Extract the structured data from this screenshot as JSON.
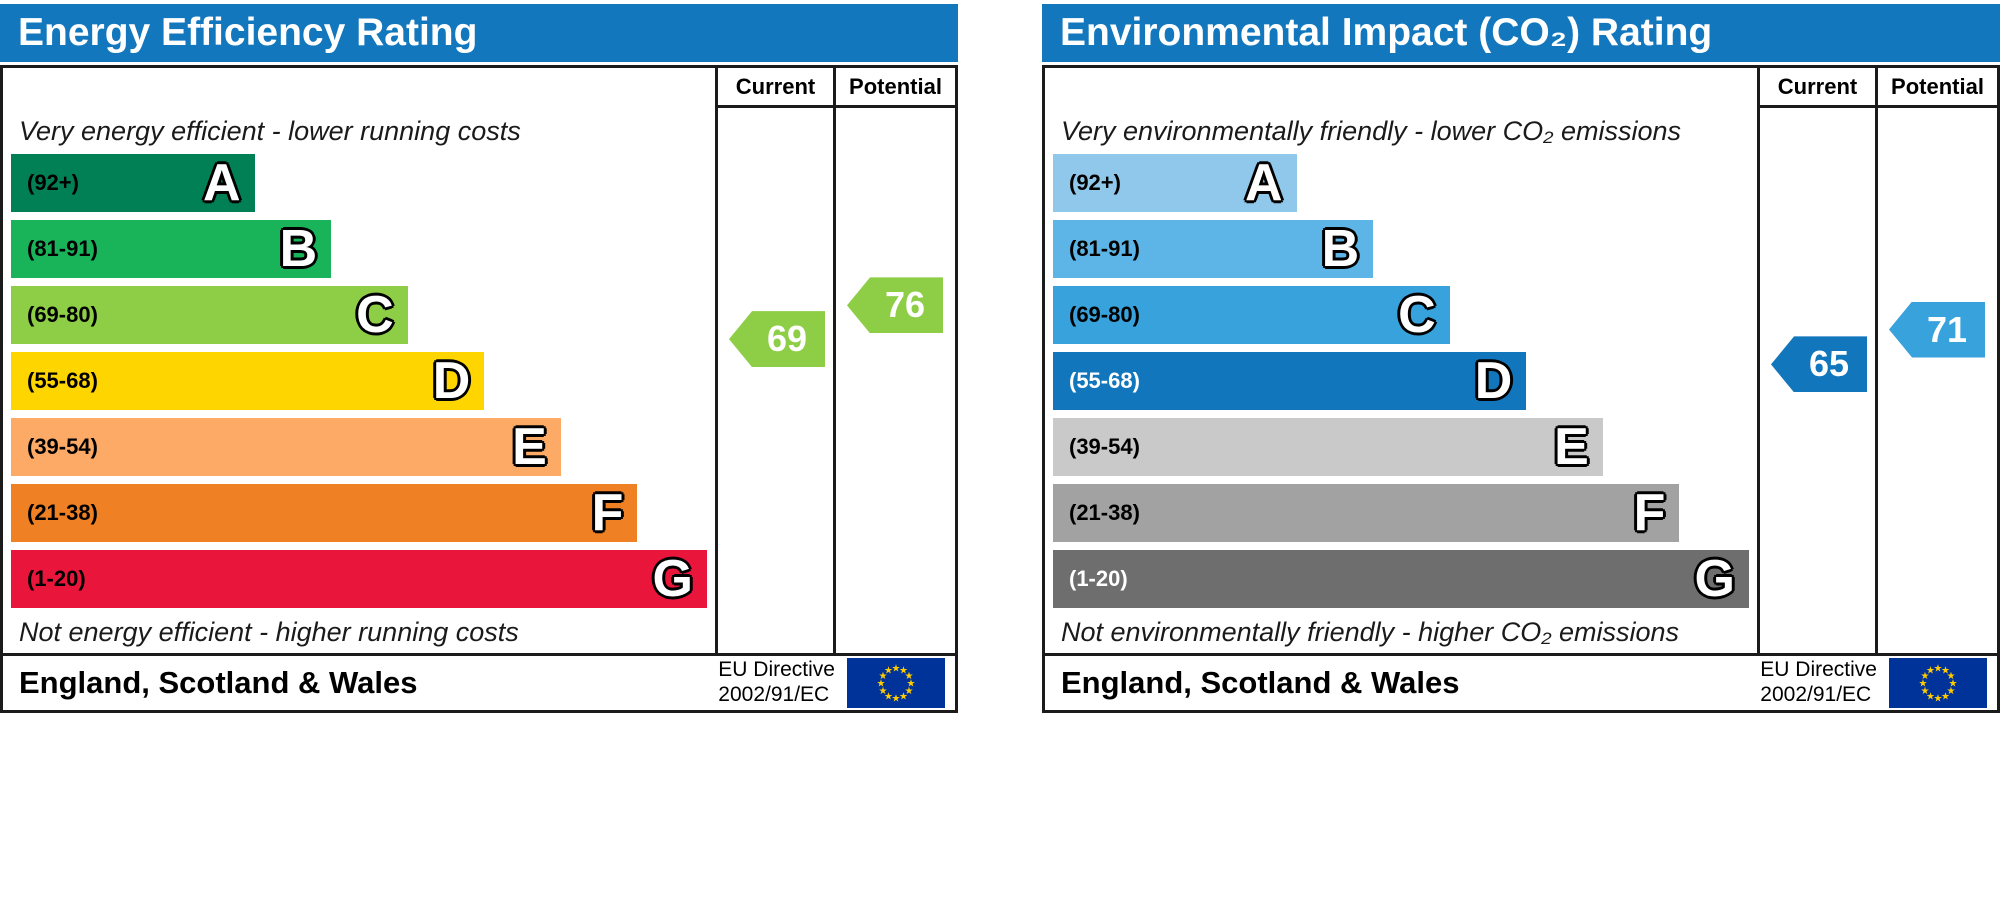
{
  "chart_data": [
    {
      "type": "bar",
      "chart_kind": "epc-rating-scale",
      "title": "Energy Efficiency Rating",
      "header_color": "#1277bd",
      "columns": [
        "Current",
        "Potential"
      ],
      "top_caption": "Very energy efficient - lower running costs",
      "bottom_caption": "Not energy efficient - higher running costs",
      "footer_region": "England, Scotland & Wales",
      "eu_directive": [
        "EU Directive",
        "2002/91/EC"
      ],
      "bands": [
        {
          "letter": "A",
          "label": "(92+)",
          "min": 92,
          "max": 100,
          "color": "#008054",
          "label_color": "#000000",
          "width_pct": 35
        },
        {
          "letter": "B",
          "label": "(81-91)",
          "min": 81,
          "max": 91,
          "color": "#19b459",
          "label_color": "#000000",
          "width_pct": 46
        },
        {
          "letter": "C",
          "label": "(69-80)",
          "min": 69,
          "max": 80,
          "color": "#8dce46",
          "label_color": "#000000",
          "width_pct": 57
        },
        {
          "letter": "D",
          "label": "(55-68)",
          "min": 55,
          "max": 68,
          "color": "#ffd500",
          "label_color": "#000000",
          "width_pct": 68
        },
        {
          "letter": "E",
          "label": "(39-54)",
          "min": 39,
          "max": 54,
          "color": "#fcaa65",
          "label_color": "#000000",
          "width_pct": 79
        },
        {
          "letter": "F",
          "label": "(21-38)",
          "min": 21,
          "max": 38,
          "color": "#ef8023",
          "label_color": "#000000",
          "width_pct": 90
        },
        {
          "letter": "G",
          "label": "(1-20)",
          "min": 1,
          "max": 20,
          "color": "#e9153b",
          "label_color": "#000000",
          "width_pct": 100
        }
      ],
      "current": {
        "value": 69,
        "color": "#8dce46"
      },
      "potential": {
        "value": 76,
        "color": "#8dce46"
      }
    },
    {
      "type": "bar",
      "chart_kind": "epc-rating-scale",
      "title": "Environmental Impact (CO₂) Rating",
      "header_color": "#1277bd",
      "columns": [
        "Current",
        "Potential"
      ],
      "top_caption": "Very environmentally friendly - lower CO₂ emissions",
      "bottom_caption": "Not environmentally friendly - higher CO₂ emissions",
      "footer_region": "England, Scotland & Wales",
      "eu_directive": [
        "EU Directive",
        "2002/91/EC"
      ],
      "bands": [
        {
          "letter": "A",
          "label": "(92+)",
          "min": 92,
          "max": 100,
          "color": "#8fc8ea",
          "label_color": "#000000",
          "width_pct": 35
        },
        {
          "letter": "B",
          "label": "(81-91)",
          "min": 81,
          "max": 91,
          "color": "#5db5e7",
          "label_color": "#000000",
          "width_pct": 46
        },
        {
          "letter": "C",
          "label": "(69-80)",
          "min": 69,
          "max": 80,
          "color": "#37a2dc",
          "label_color": "#000000",
          "width_pct": 57
        },
        {
          "letter": "D",
          "label": "(55-68)",
          "min": 55,
          "max": 68,
          "color": "#1176bc",
          "label_color": "#ffffff",
          "width_pct": 68
        },
        {
          "letter": "E",
          "label": "(39-54)",
          "min": 39,
          "max": 54,
          "color": "#c9c9c9",
          "label_color": "#000000",
          "width_pct": 79
        },
        {
          "letter": "F",
          "label": "(21-38)",
          "min": 21,
          "max": 38,
          "color": "#a2a2a2",
          "label_color": "#000000",
          "width_pct": 90
        },
        {
          "letter": "G",
          "label": "(1-20)",
          "min": 1,
          "max": 20,
          "color": "#6e6e6e",
          "label_color": "#ffffff",
          "width_pct": 100
        }
      ],
      "current": {
        "value": 65,
        "color": "#1176bc"
      },
      "potential": {
        "value": 71,
        "color": "#37a2dc"
      }
    }
  ]
}
